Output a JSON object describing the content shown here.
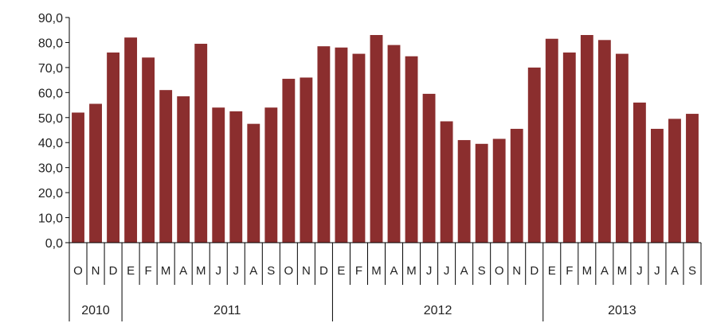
{
  "chart_data": {
    "type": "bar",
    "title": "",
    "xlabel": "",
    "ylabel": "",
    "ylim": [
      0,
      90
    ],
    "yticks": [
      "0,0",
      "10,0",
      "20,0",
      "30,0",
      "40,0",
      "50,0",
      "60,0",
      "70,0",
      "80,0",
      "90,0"
    ],
    "grid": false,
    "bar_color": "#8b2e2e",
    "categories": [
      "O",
      "N",
      "D",
      "E",
      "F",
      "M",
      "A",
      "M",
      "J",
      "J",
      "A",
      "S",
      "O",
      "N",
      "D",
      "E",
      "F",
      "M",
      "A",
      "M",
      "J",
      "J",
      "A",
      "S",
      "O",
      "N",
      "D",
      "E",
      "F",
      "M",
      "A",
      "M",
      "J",
      "J",
      "A",
      "S"
    ],
    "values": [
      52.0,
      55.5,
      76.0,
      82.0,
      74.0,
      61.0,
      58.5,
      79.5,
      54.0,
      52.5,
      47.5,
      54.0,
      65.5,
      66.0,
      78.5,
      78.0,
      75.5,
      83.0,
      79.0,
      74.5,
      59.5,
      48.5,
      41.0,
      39.5,
      41.5,
      45.5,
      70.0,
      81.5,
      76.0,
      83.0,
      81.0,
      75.5,
      56.0,
      45.5,
      49.5,
      51.5
    ],
    "years": [
      {
        "label": "2010",
        "start": 0,
        "count": 3
      },
      {
        "label": "2011",
        "start": 3,
        "count": 12
      },
      {
        "label": "2012",
        "start": 15,
        "count": 12
      },
      {
        "label": "2013",
        "start": 27,
        "count": 9
      }
    ]
  }
}
